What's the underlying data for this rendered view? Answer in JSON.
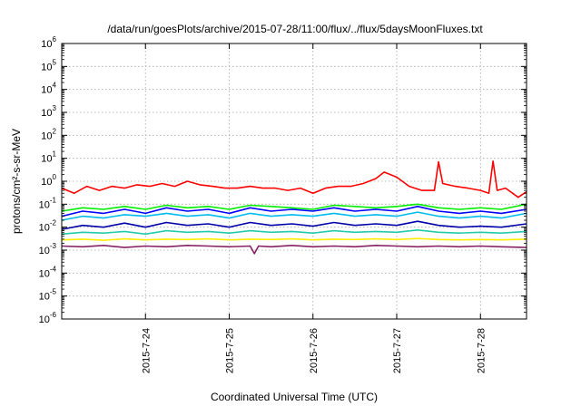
{
  "chart_data": {
    "type": "line",
    "title": "/data/run/goesPlots/archive/2015-07-28/11:00/flux/../flux/5daysMoonFluxes.txt",
    "xlabel": "Coordinated Universal Time (UTC)",
    "ylabel": "protons/cm²-s-sr-MeV",
    "yscale": "log",
    "ylim": [
      1e-06,
      1000000.0
    ],
    "xlim": [
      -1.0,
      4.55
    ],
    "grid": true,
    "legend": "none",
    "x_ticks": [
      {
        "value": 0,
        "label": "2015-7-24"
      },
      {
        "value": 1,
        "label": "2015-7-25"
      },
      {
        "value": 2,
        "label": "2015-7-26"
      },
      {
        "value": 3,
        "label": "2015-7-27"
      },
      {
        "value": 4,
        "label": "2015-7-28"
      }
    ],
    "y_ticks": [
      {
        "exp": -6,
        "label": "10-6"
      },
      {
        "exp": -5,
        "label": "10-5"
      },
      {
        "exp": -4,
        "label": "10-4"
      },
      {
        "exp": -3,
        "label": "10-3"
      },
      {
        "exp": -2,
        "label": "10-2"
      },
      {
        "exp": -1,
        "label": "10-1"
      },
      {
        "exp": 0,
        "label": "100"
      },
      {
        "exp": 1,
        "label": "101"
      },
      {
        "exp": 2,
        "label": "102"
      },
      {
        "exp": 3,
        "label": "103"
      },
      {
        "exp": 4,
        "label": "104"
      },
      {
        "exp": 5,
        "label": "105"
      },
      {
        "exp": 6,
        "label": "106"
      }
    ],
    "series": [
      {
        "color": "#ff0000",
        "x": [
          -1.0,
          -0.85,
          -0.7,
          -0.55,
          -0.4,
          -0.25,
          -0.1,
          0.05,
          0.2,
          0.35,
          0.5,
          0.65,
          0.8,
          0.95,
          1.1,
          1.25,
          1.4,
          1.55,
          1.7,
          1.85,
          2.0,
          2.15,
          2.3,
          2.45,
          2.6,
          2.75,
          2.85,
          3.0,
          3.15,
          3.3,
          3.45,
          3.5,
          3.55,
          3.7,
          3.85,
          4.0,
          4.1,
          4.15,
          4.2,
          4.3,
          4.45,
          4.55
        ],
        "y": [
          0.5,
          0.3,
          0.6,
          0.4,
          0.6,
          0.5,
          0.7,
          0.6,
          0.8,
          0.6,
          1.0,
          0.7,
          0.6,
          0.5,
          0.5,
          0.6,
          0.5,
          0.5,
          0.4,
          0.5,
          0.3,
          0.5,
          0.6,
          0.6,
          0.8,
          1.3,
          2.5,
          1.5,
          0.6,
          0.4,
          0.4,
          7.0,
          0.8,
          0.6,
          0.5,
          0.4,
          0.3,
          7.5,
          0.4,
          0.5,
          0.2,
          0.35
        ]
      },
      {
        "color": "#00ee00",
        "x": [
          -1.0,
          -0.75,
          -0.5,
          -0.25,
          0.0,
          0.25,
          0.5,
          0.75,
          1.0,
          1.25,
          1.5,
          1.75,
          2.0,
          2.25,
          2.5,
          2.75,
          3.0,
          3.25,
          3.5,
          3.75,
          4.0,
          4.25,
          4.55
        ],
        "y": [
          0.05,
          0.07,
          0.06,
          0.08,
          0.06,
          0.09,
          0.07,
          0.08,
          0.06,
          0.09,
          0.08,
          0.07,
          0.06,
          0.09,
          0.08,
          0.07,
          0.08,
          0.1,
          0.07,
          0.06,
          0.07,
          0.06,
          0.1
        ]
      },
      {
        "color": "#00bbee",
        "x": [
          -1.0,
          -0.75,
          -0.5,
          -0.25,
          0.0,
          0.25,
          0.5,
          0.75,
          1.0,
          1.25,
          1.5,
          1.75,
          2.0,
          2.25,
          2.5,
          2.75,
          3.0,
          3.25,
          3.5,
          3.75,
          4.0,
          4.25,
          4.55
        ],
        "y": [
          0.02,
          0.03,
          0.025,
          0.035,
          0.03,
          0.04,
          0.03,
          0.035,
          0.025,
          0.04,
          0.03,
          0.035,
          0.03,
          0.04,
          0.03,
          0.035,
          0.03,
          0.045,
          0.03,
          0.025,
          0.03,
          0.025,
          0.04
        ]
      },
      {
        "color": "#0000ff",
        "x": [
          -1.0,
          -0.75,
          -0.5,
          -0.25,
          0.0,
          0.25,
          0.5,
          0.75,
          1.0,
          1.25,
          1.5,
          1.75,
          2.0,
          2.25,
          2.5,
          2.75,
          3.0,
          3.25,
          3.5,
          3.75,
          4.0,
          4.25,
          4.55
        ],
        "y": [
          0.03,
          0.05,
          0.04,
          0.06,
          0.04,
          0.07,
          0.05,
          0.06,
          0.04,
          0.07,
          0.05,
          0.06,
          0.05,
          0.07,
          0.05,
          0.06,
          0.05,
          0.08,
          0.05,
          0.04,
          0.05,
          0.04,
          0.06
        ]
      },
      {
        "color": "#0000aa",
        "x": [
          -1.0,
          -0.75,
          -0.5,
          -0.25,
          0.0,
          0.25,
          0.5,
          0.75,
          1.0,
          1.25,
          1.5,
          1.75,
          2.0,
          2.25,
          2.5,
          2.75,
          3.0,
          3.25,
          3.5,
          3.75,
          4.0,
          4.25,
          4.55
        ],
        "y": [
          0.008,
          0.012,
          0.01,
          0.015,
          0.01,
          0.016,
          0.012,
          0.014,
          0.01,
          0.016,
          0.012,
          0.014,
          0.011,
          0.016,
          0.012,
          0.014,
          0.012,
          0.018,
          0.012,
          0.01,
          0.011,
          0.01,
          0.014
        ]
      },
      {
        "color": "#22ccaa",
        "x": [
          -1.0,
          -0.75,
          -0.5,
          -0.25,
          0.0,
          0.25,
          0.5,
          0.75,
          1.0,
          1.25,
          1.5,
          1.75,
          2.0,
          2.25,
          2.5,
          2.75,
          3.0,
          3.25,
          3.5,
          3.75,
          4.0,
          4.25,
          4.55
        ],
        "y": [
          0.005,
          0.006,
          0.0055,
          0.0065,
          0.005,
          0.007,
          0.006,
          0.0065,
          0.0055,
          0.007,
          0.006,
          0.0065,
          0.0055,
          0.007,
          0.006,
          0.0065,
          0.006,
          0.0075,
          0.006,
          0.0055,
          0.006,
          0.0055,
          0.0065
        ]
      },
      {
        "color": "#ffee00",
        "x": [
          -1.0,
          -0.75,
          -0.5,
          -0.25,
          0.0,
          0.25,
          0.5,
          0.75,
          1.0,
          1.25,
          1.5,
          1.75,
          2.0,
          2.25,
          2.5,
          2.75,
          3.0,
          3.25,
          3.5,
          3.75,
          4.0,
          4.25,
          4.55
        ],
        "y": [
          0.0028,
          0.003,
          0.0027,
          0.0031,
          0.0028,
          0.003,
          0.0029,
          0.0031,
          0.0028,
          0.003,
          0.0029,
          0.0031,
          0.0028,
          0.003,
          0.0029,
          0.0031,
          0.0029,
          0.0032,
          0.0029,
          0.0028,
          0.0029,
          0.0028,
          0.003
        ]
      },
      {
        "color": "#882266",
        "x": [
          -1.0,
          -0.75,
          -0.5,
          -0.25,
          0.0,
          0.25,
          0.5,
          0.75,
          1.0,
          1.25,
          1.3,
          1.35,
          1.5,
          1.75,
          2.0,
          2.25,
          2.5,
          2.75,
          3.0,
          3.25,
          3.5,
          3.75,
          4.0,
          4.25,
          4.55
        ],
        "y": [
          0.0015,
          0.0014,
          0.0016,
          0.0013,
          0.0015,
          0.0014,
          0.0016,
          0.0015,
          0.0014,
          0.0015,
          0.0007,
          0.0015,
          0.0014,
          0.0016,
          0.0014,
          0.0015,
          0.0014,
          0.0016,
          0.0015,
          0.0014,
          0.0015,
          0.0014,
          0.0015,
          0.0014,
          0.0013
        ]
      }
    ]
  }
}
